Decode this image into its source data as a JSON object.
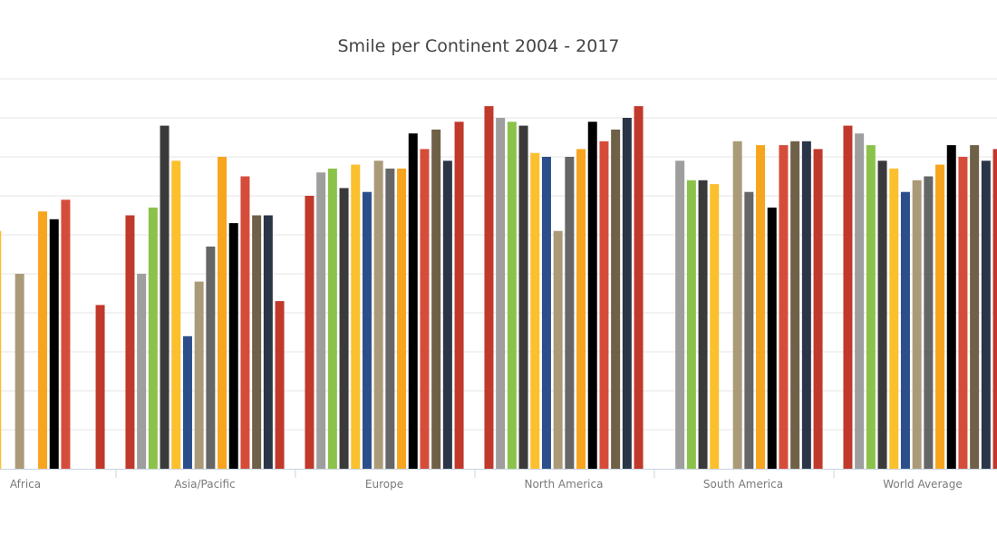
{
  "chart_data": {
    "type": "bar",
    "title": "Smile per Continent 2004 - 2017",
    "xlabel": "",
    "ylabel": "",
    "grid": true,
    "ylim": [
      0,
      100
    ],
    "categories": [
      "Africa",
      "Asia/Pacific",
      "Europe",
      "North America",
      "South America",
      "World Average"
    ],
    "series": [
      {
        "color": "#c0392b",
        "values": [
          null,
          65,
          70,
          93,
          null,
          88
        ]
      },
      {
        "color": "#9e9e9e",
        "values": [
          null,
          50,
          76,
          90,
          79,
          86
        ]
      },
      {
        "color": "#8bc34a",
        "values": [
          null,
          67,
          77,
          89,
          74,
          83
        ]
      },
      {
        "color": "#3a3a3a",
        "values": [
          null,
          88,
          72,
          88,
          74,
          79
        ]
      },
      {
        "color": "#fbc02d",
        "values": [
          61,
          79,
          78,
          81,
          73,
          77
        ]
      },
      {
        "color": "#2c4f8c",
        "values": [
          null,
          34,
          71,
          80,
          null,
          71
        ]
      },
      {
        "color": "#ab9a78",
        "values": [
          50,
          48,
          79,
          61,
          84,
          74
        ]
      },
      {
        "color": "#666666",
        "values": [
          null,
          57,
          77,
          80,
          71,
          75
        ]
      },
      {
        "color": "#f7a51f",
        "values": [
          66,
          80,
          77,
          82,
          83,
          78
        ]
      },
      {
        "color": "#000000",
        "values": [
          64,
          63,
          86,
          89,
          67,
          83
        ]
      },
      {
        "color": "#d64c3b",
        "values": [
          69,
          75,
          82,
          84,
          83,
          80
        ]
      },
      {
        "color": "#6f6048",
        "values": [
          null,
          65,
          87,
          87,
          84,
          83
        ]
      },
      {
        "color": "#2a3547",
        "values": [
          null,
          65,
          79,
          90,
          84,
          79
        ]
      },
      {
        "color": "#c0392b",
        "values": [
          42,
          43,
          89,
          93,
          82,
          82
        ]
      }
    ]
  }
}
